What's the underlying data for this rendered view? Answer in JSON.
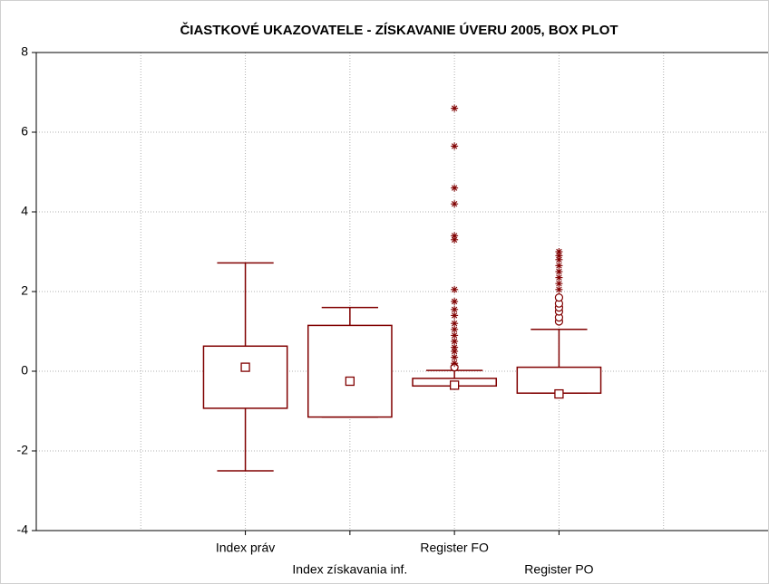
{
  "chart_data": {
    "type": "box",
    "title": "ČIASTKOVÉ UKAZOVATELE - ZÍSKAVANIE ÚVERU 2005, BOX PLOT",
    "categories": [
      null,
      "Index práv",
      "Index získavania inf.",
      "Register FO",
      "Register PO",
      null
    ],
    "color": "#800000",
    "ylim": [
      -4,
      8
    ],
    "yticks": [
      -4,
      -2,
      0,
      2,
      4,
      6,
      8
    ],
    "grid": true,
    "boxes": [
      null,
      {
        "median": 0.1,
        "q1": -0.93,
        "q3": 0.63,
        "whisker_low": -2.5,
        "whisker_high": 2.72,
        "outliers": [],
        "extremes": []
      },
      {
        "median": -0.25,
        "q1": -1.15,
        "q3": 1.15,
        "whisker_low": -1.15,
        "whisker_high": 1.6,
        "outliers": [],
        "extremes": []
      },
      {
        "median": -0.35,
        "q1": -0.37,
        "q3": -0.18,
        "whisker_low": -0.37,
        "whisker_high": 0.02,
        "outliers": [
          0.1
        ],
        "extremes": [
          0.2,
          0.35,
          0.5,
          0.6,
          0.75,
          0.9,
          1.05,
          1.2,
          1.4,
          1.55,
          1.75,
          2.05,
          3.3,
          3.4,
          4.2,
          4.6,
          5.65,
          6.6
        ]
      },
      {
        "median": -0.57,
        "q1": -0.55,
        "q3": 0.1,
        "whisker_low": -0.55,
        "whisker_high": 1.05,
        "outliers": [
          1.25,
          1.35,
          1.5,
          1.6,
          1.7,
          1.85
        ],
        "extremes": [
          2.05,
          2.2,
          2.35,
          2.5,
          2.65,
          2.8,
          2.9,
          3.0
        ]
      },
      null
    ]
  }
}
